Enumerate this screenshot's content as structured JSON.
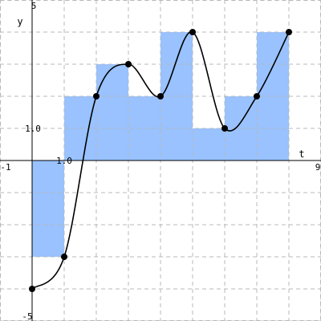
{
  "chart_data": {
    "type": "bar",
    "xlabel": "t",
    "ylabel": "y",
    "xlim": [
      -1,
      9
    ],
    "ylim": [
      -5,
      5
    ],
    "grid": true,
    "tick_labels": {
      "x_min": "-1",
      "x_max": "9",
      "x_unit": "1.0",
      "y_min": "-5",
      "y_max": "5",
      "y_unit": "1.0"
    },
    "bars": [
      {
        "x0": 0,
        "x1": 1,
        "value": -3
      },
      {
        "x0": 1,
        "x1": 2,
        "value": 2
      },
      {
        "x0": 2,
        "x1": 3,
        "value": 3
      },
      {
        "x0": 3,
        "x1": 4,
        "value": 2
      },
      {
        "x0": 4,
        "x1": 5,
        "value": 4
      },
      {
        "x0": 5,
        "x1": 6,
        "value": 1
      },
      {
        "x0": 6,
        "x1": 7,
        "value": 2
      },
      {
        "x0": 7,
        "x1": 8,
        "value": 4
      }
    ],
    "series": [
      {
        "type": "line",
        "smooth": true,
        "x": [
          0,
          1,
          2,
          3,
          4,
          5,
          6,
          7,
          8
        ],
        "y": [
          -4,
          -3,
          2,
          3,
          2,
          4,
          1,
          2,
          4
        ]
      }
    ],
    "colors": {
      "bar_fill": "#99c2ff",
      "line": "#000000",
      "grid": "#b8b8b8",
      "axis": "#000000"
    }
  }
}
